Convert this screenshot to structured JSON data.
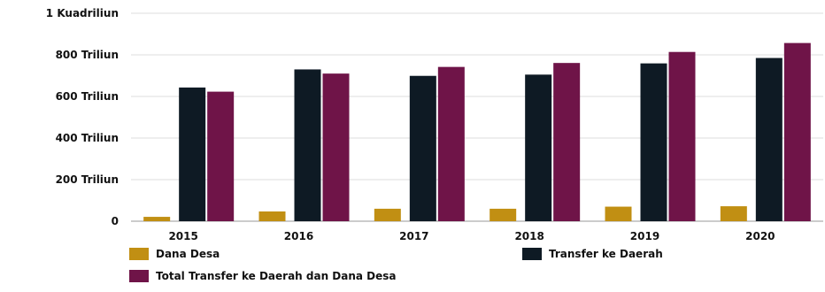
{
  "chart_data": {
    "type": "bar",
    "categories": [
      "2015",
      "2016",
      "2017",
      "2018",
      "2019",
      "2020"
    ],
    "series": [
      {
        "name": "Dana Desa",
        "values": [
          21,
          47,
          60,
          60,
          70,
          72
        ]
      },
      {
        "name": "Transfer ke Daerah",
        "values": [
          643,
          730,
          699,
          705,
          759,
          785
        ]
      },
      {
        "name": "Total Transfer ke Daerah dan Dana Desa",
        "values": [
          623,
          710,
          742,
          761,
          814,
          857
        ]
      }
    ],
    "ylim": [
      0,
      1000
    ],
    "yticks": [
      0,
      200,
      400,
      600,
      800,
      1000
    ],
    "ytick_labels": [
      "0",
      "200 Triliun",
      "400 Triliun",
      "600 Triliun",
      "800 Triliun",
      "1 Kuadriliun"
    ],
    "colors": [
      "#C18F13",
      "#0E1A24",
      "#6F1448"
    ],
    "grid": true,
    "legend_position": "bottom"
  }
}
